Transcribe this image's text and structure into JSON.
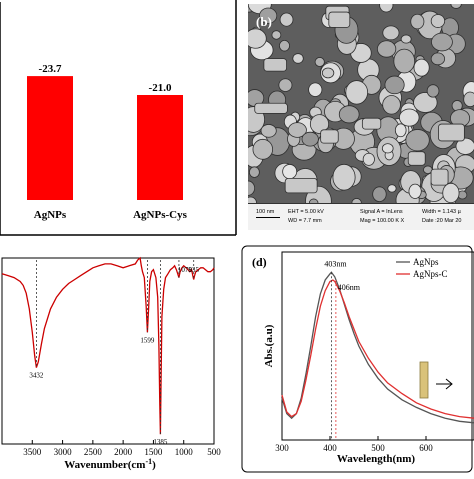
{
  "chart_data": [
    {
      "panel": "a",
      "type": "bar",
      "categories": [
        "AgNPs",
        "AgNPs-Cys"
      ],
      "values": [
        -23.7,
        -21.0
      ],
      "data_labels": [
        "-23.7",
        "-21.0"
      ],
      "bar_color": "#ff0000"
    },
    {
      "panel": "b",
      "type": "image",
      "label": "(b)",
      "scale_bar": "100 nm",
      "info": {
        "eht": "EHT = 5.00 kV",
        "wd": "WD = 7.7 mm",
        "signal": "Signal A = InLens",
        "mag": "Mag = 100.00 K X",
        "width": "Width = 1.143 µ",
        "date": "Date :20 Mar 20"
      }
    },
    {
      "panel": "c",
      "type": "line",
      "xlabel": "Wavenumber(cm",
      "xlabel_sup": "-1",
      "xlabel_close": ")",
      "xlim": [
        4000,
        500
      ],
      "x_ticks": [
        "3500",
        "3000",
        "2500",
        "2000",
        "1500",
        "1000",
        "500"
      ],
      "series": [
        {
          "color": "#cc0000",
          "x": [
            4000,
            3900,
            3800,
            3700,
            3650,
            3600,
            3550,
            3500,
            3460,
            3432,
            3400,
            3350,
            3300,
            3200,
            3100,
            3000,
            2900,
            2800,
            2700,
            2600,
            2500,
            2400,
            2300,
            2200,
            2100,
            2000,
            1900,
            1800,
            1760,
            1720,
            1700,
            1680,
            1650,
            1620,
            1599,
            1580,
            1560,
            1530,
            1500,
            1460,
            1430,
            1410,
            1395,
            1385,
            1375,
            1360,
            1330,
            1300,
            1260,
            1220,
            1180,
            1150,
            1120,
            1100,
            1079,
            1060,
            1030,
            1000,
            960,
            930,
            900,
            870,
            850,
            835,
            820,
            800,
            760,
            720,
            680,
            640,
            600,
            560,
            520,
            500
          ],
          "y": [
            92,
            91,
            90,
            88,
            86,
            82,
            74,
            62,
            50,
            44,
            47,
            56,
            64,
            74,
            80,
            84,
            87,
            89,
            91,
            93,
            95,
            96,
            97,
            97,
            96,
            95,
            96,
            97,
            99,
            100,
            96,
            93,
            90,
            75,
            62,
            74,
            88,
            93,
            94,
            90,
            80,
            55,
            25,
            10,
            35,
            70,
            84,
            90,
            92,
            94,
            95,
            96,
            94,
            92,
            90,
            93,
            95,
            96,
            95,
            94,
            93,
            94,
            91,
            89,
            91,
            93,
            94,
            95,
            95,
            94,
            93,
            93,
            94,
            95
          ]
        }
      ],
      "annotations": [
        {
          "x": 3432,
          "label": "3432"
        },
        {
          "x": 1599,
          "label": "1599"
        },
        {
          "x": 1385,
          "label": "1385"
        },
        {
          "x": 1079,
          "label": "1079"
        },
        {
          "x": 835,
          "label": "835"
        }
      ]
    },
    {
      "panel": "d",
      "type": "line",
      "label": "(d)",
      "xlabel": "Wavelength(nm)",
      "ylabel": "Abs.(a.u)",
      "xlim": [
        300,
        700
      ],
      "x_ticks": [
        "300",
        "400",
        "500",
        "600"
      ],
      "legend_position": "top-right",
      "series": [
        {
          "name": "AgNps",
          "color": "#555555",
          "x": [
            300,
            310,
            320,
            330,
            340,
            350,
            360,
            370,
            380,
            390,
            400,
            403,
            410,
            420,
            430,
            440,
            450,
            460,
            480,
            500,
            520,
            550,
            580,
            610,
            640,
            670,
            700
          ],
          "y": [
            0.22,
            0.12,
            0.09,
            0.12,
            0.22,
            0.38,
            0.56,
            0.75,
            0.9,
            0.99,
            1.03,
            1.04,
            1.01,
            0.93,
            0.83,
            0.73,
            0.64,
            0.56,
            0.44,
            0.35,
            0.28,
            0.21,
            0.16,
            0.12,
            0.09,
            0.07,
            0.06
          ]
        },
        {
          "name": "AgNps-C",
          "color": "#e03030",
          "x": [
            300,
            310,
            320,
            330,
            340,
            350,
            360,
            370,
            380,
            390,
            400,
            406,
            410,
            420,
            430,
            440,
            450,
            460,
            480,
            500,
            520,
            550,
            580,
            610,
            640,
            670,
            700
          ],
          "y": [
            0.24,
            0.13,
            0.1,
            0.12,
            0.2,
            0.34,
            0.5,
            0.67,
            0.82,
            0.92,
            0.98,
            0.99,
            0.98,
            0.92,
            0.84,
            0.75,
            0.67,
            0.59,
            0.48,
            0.39,
            0.32,
            0.25,
            0.19,
            0.15,
            0.12,
            0.1,
            0.09
          ]
        }
      ],
      "annotations": [
        {
          "x": 403,
          "label": "403nm"
        },
        {
          "x": 406,
          "label": "406nm"
        }
      ]
    }
  ]
}
